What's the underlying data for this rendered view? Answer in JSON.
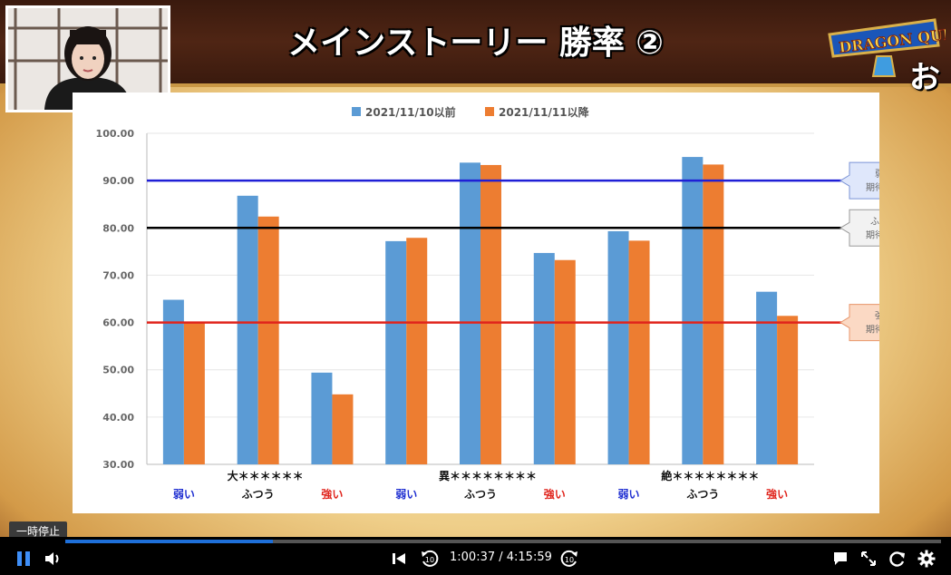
{
  "slide": {
    "title": "メインストーリー 勝率 ②",
    "logo_text": "DRAGON QUEST X",
    "corner_text": "お"
  },
  "chart_data": {
    "type": "bar",
    "legend_position": "top",
    "series": [
      {
        "name": "2021/11/10以前",
        "color": "#5b9bd5",
        "values": [
          64.8,
          86.8,
          49.4,
          77.2,
          93.8,
          74.7,
          79.3,
          95.0,
          66.5
        ]
      },
      {
        "name": "2021/11/11以降",
        "color": "#ed7d31",
        "values": [
          60.0,
          82.4,
          44.8,
          77.9,
          93.3,
          73.2,
          77.3,
          93.4,
          61.4
        ]
      }
    ],
    "categories": [
      "弱い",
      "ふつう",
      "強い",
      "弱い",
      "ふつう",
      "強い",
      "弱い",
      "ふつう",
      "強い"
    ],
    "category_colors": [
      "#1f2fd1",
      "#111111",
      "#e0241c",
      "#1f2fd1",
      "#111111",
      "#e0241c",
      "#1f2fd1",
      "#111111",
      "#e0241c"
    ],
    "groups": [
      "大＊＊＊＊＊＊",
      "異＊＊＊＊＊＊＊＊",
      "絶＊＊＊＊＊＊＊＊"
    ],
    "yticks": [
      "100.00",
      "90.00",
      "80.00",
      "70.00",
      "60.00",
      "50.00",
      "40.00",
      "30.00"
    ],
    "ylim": [
      30,
      100
    ],
    "reference_lines": [
      {
        "value": 90,
        "color": "#1f1fd6",
        "label": "弱い\n期待勝率",
        "fill": "#dfe7fb",
        "stroke": "#7b93d6"
      },
      {
        "value": 80,
        "color": "#000000",
        "label": "ふつう\n期待勝率",
        "fill": "#f2f2f2",
        "stroke": "#9a9a9a"
      },
      {
        "value": 60,
        "color": "#e0241c",
        "label": "強い\n期待勝率",
        "fill": "#fbd9c4",
        "stroke": "#e8956a"
      }
    ]
  },
  "player": {
    "tooltip": "一時停止",
    "time": "1:00:37 / 4:15:59",
    "progress": 0.2366,
    "accent": "#1e6fd9",
    "icons": [
      "pause-icon",
      "volume-icon",
      "previous-icon",
      "rewind-10-icon",
      "forward-10-icon",
      "chat-icon",
      "fullscreen-icon",
      "refresh-icon",
      "settings-icon"
    ]
  }
}
